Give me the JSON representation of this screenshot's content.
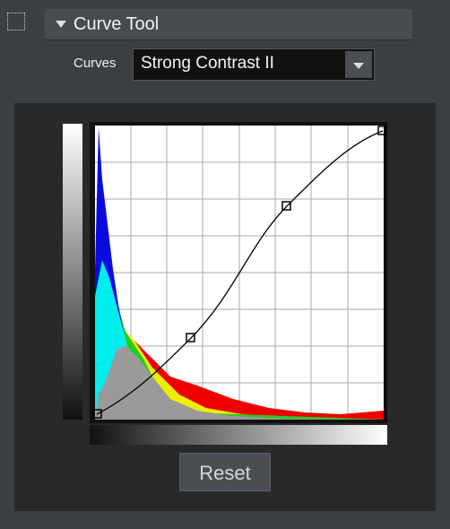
{
  "panel_title": "Curve Tool",
  "curves_label": "Curves",
  "preset": "Strong Contrast II",
  "reset_button": "Reset"
}
